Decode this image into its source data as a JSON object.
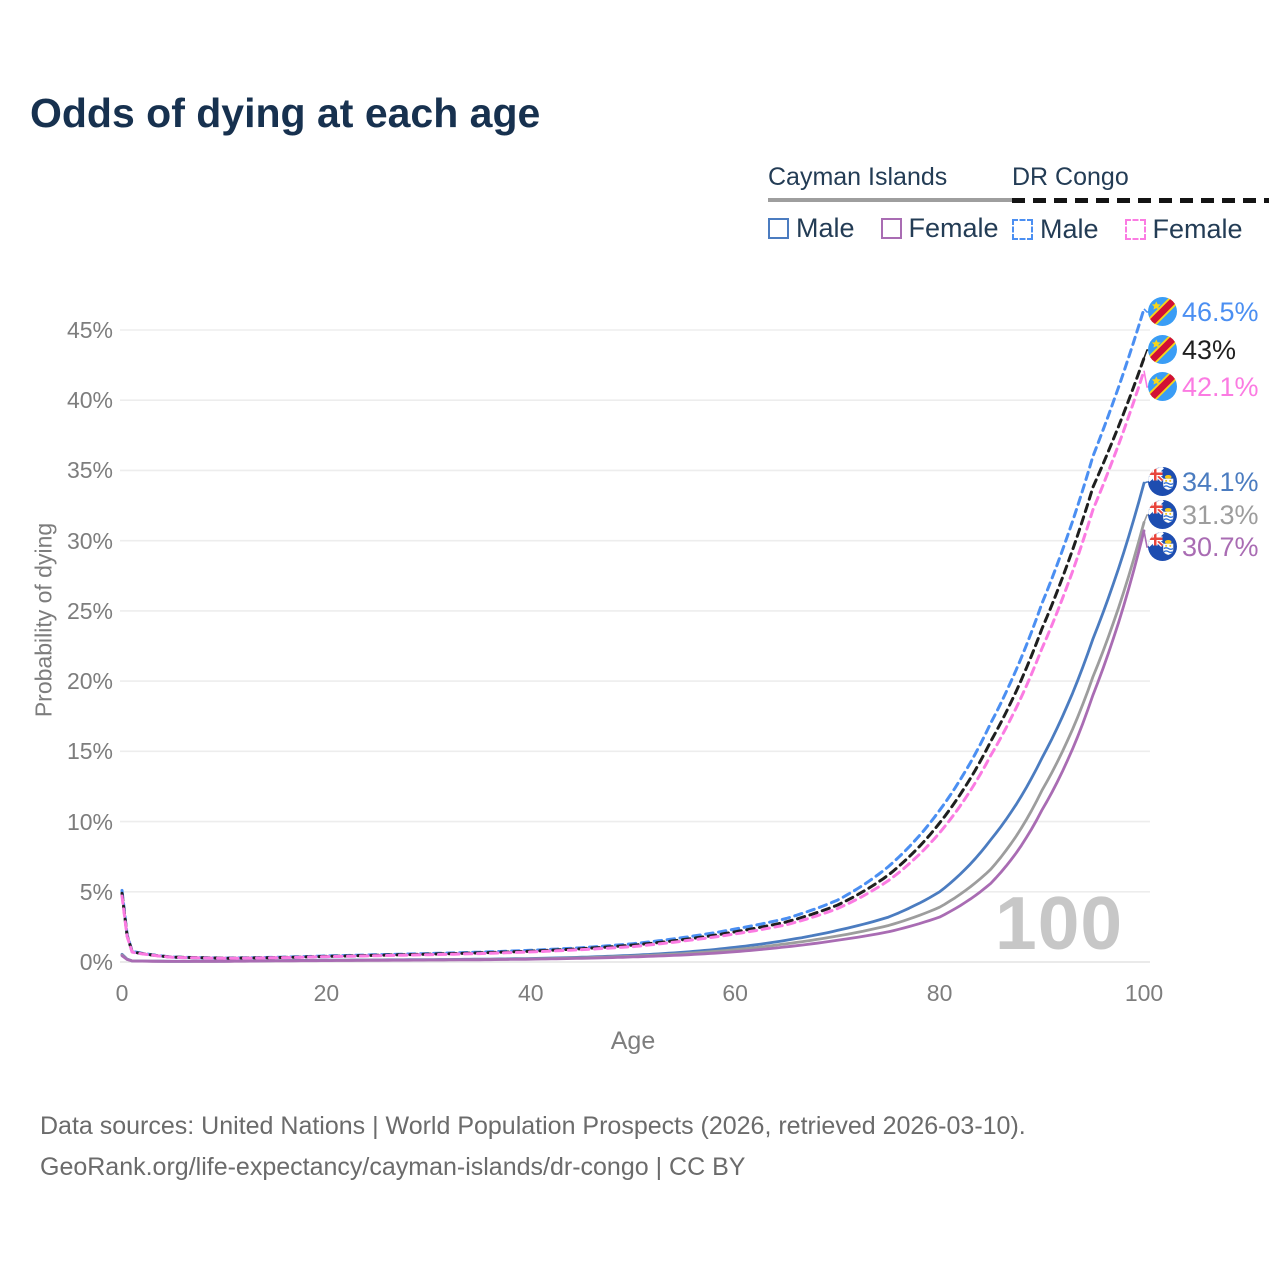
{
  "title": "Odds of dying at each age",
  "legend": {
    "groups": [
      {
        "name": "Cayman Islands",
        "line_style": "solid",
        "underline_color": "#9e9e9e",
        "items": [
          {
            "label": "Male",
            "color": "#4b7cc0"
          },
          {
            "label": "Female",
            "color": "#a96cb3"
          }
        ]
      },
      {
        "name": "DR Congo",
        "line_style": "dashed",
        "underline_color": "#141414",
        "items": [
          {
            "label": "Male",
            "color": "#4b8ff2"
          },
          {
            "label": "Female",
            "color": "#fb7be2"
          }
        ]
      }
    ]
  },
  "watermark": "100",
  "footer": {
    "line1": "Data sources: United Nations | World Population Prospects (2026, retrieved 2026-03-10).",
    "line2": "GeoRank.org/life-expectancy/cayman-islands/dr-congo | CC BY"
  },
  "end_labels": [
    {
      "text": "46.5%",
      "color": "#4b8ff2",
      "flag": "dr-congo-flag",
      "series": "DR Congo — Male"
    },
    {
      "text": "43%",
      "color": "#1f1f1f",
      "flag": "dr-congo-flag",
      "series": "DR Congo — Both sexes"
    },
    {
      "text": "42.1%",
      "color": "#fb7be2",
      "flag": "dr-congo-flag",
      "series": "DR Congo — Female"
    },
    {
      "text": "34.1%",
      "color": "#4b7cc0",
      "flag": "cayman-islands-flag",
      "series": "Cayman Islands — Male"
    },
    {
      "text": "31.3%",
      "color": "#9d9d9d",
      "flag": "cayman-islands-flag",
      "series": "Cayman Islands — Both sexes"
    },
    {
      "text": "30.7%",
      "color": "#a96cb3",
      "flag": "cayman-islands-flag",
      "series": "Cayman Islands — Female"
    }
  ],
  "chart_data": {
    "type": "line",
    "title": "Odds of dying at each age",
    "xlabel": "Age",
    "ylabel": "Probability of dying",
    "xlim": [
      0,
      100
    ],
    "ylim_pct": [
      0,
      47
    ],
    "grid": "horizontal-only",
    "legend_position": "top-right",
    "x_ticks": [
      0,
      20,
      40,
      60,
      80,
      100
    ],
    "x_tick_labels": [
      "0",
      "20",
      "40",
      "60",
      "80",
      "100"
    ],
    "y_ticks_pct": [
      0,
      5,
      10,
      15,
      20,
      25,
      30,
      35,
      40,
      45
    ],
    "y_tick_labels": [
      "0%",
      "5%",
      "10%",
      "15%",
      "20%",
      "25%",
      "30%",
      "35%",
      "40%",
      "45%"
    ],
    "ages": [
      0,
      1,
      5,
      10,
      15,
      20,
      25,
      30,
      35,
      40,
      45,
      50,
      55,
      60,
      65,
      70,
      75,
      80,
      85,
      90,
      95,
      100
    ],
    "series": [
      {
        "name": "Cayman Islands — Male",
        "country": "Cayman Islands",
        "sex": "Male",
        "style": "solid",
        "color": "#4b7cc0",
        "end_value_pct": 34.1,
        "end_label": "34.1%",
        "values_pct": [
          0.55,
          0.08,
          0.05,
          0.06,
          0.1,
          0.13,
          0.15,
          0.17,
          0.2,
          0.25,
          0.34,
          0.48,
          0.7,
          1.05,
          1.55,
          2.25,
          3.2,
          5.0,
          8.7,
          14.5,
          23.0,
          34.1
        ]
      },
      {
        "name": "Cayman Islands — Both sexes",
        "country": "Cayman Islands",
        "sex": "Both sexes",
        "style": "solid",
        "color": "#9d9d9d",
        "end_value_pct": 31.3,
        "end_label": "31.3%",
        "values_pct": [
          0.5,
          0.075,
          0.045,
          0.055,
          0.09,
          0.11,
          0.13,
          0.15,
          0.18,
          0.22,
          0.3,
          0.42,
          0.6,
          0.88,
          1.3,
          1.85,
          2.6,
          3.9,
          6.6,
          12.2,
          20.3,
          31.3
        ]
      },
      {
        "name": "Cayman Islands — Female",
        "country": "Cayman Islands",
        "sex": "Female",
        "style": "solid",
        "color": "#a96cb3",
        "end_value_pct": 30.7,
        "end_label": "30.7%",
        "values_pct": [
          0.45,
          0.07,
          0.04,
          0.05,
          0.08,
          0.1,
          0.12,
          0.14,
          0.16,
          0.2,
          0.26,
          0.36,
          0.5,
          0.73,
          1.08,
          1.55,
          2.15,
          3.2,
          5.6,
          10.8,
          19.0,
          30.7
        ]
      },
      {
        "name": "DR Congo — Male",
        "country": "DR Congo",
        "sex": "Male",
        "style": "dashed",
        "color": "#4b8ff2",
        "end_value_pct": 46.5,
        "end_label": "46.5%",
        "values_pct": [
          5.1,
          0.75,
          0.35,
          0.28,
          0.33,
          0.43,
          0.52,
          0.6,
          0.7,
          0.83,
          1.02,
          1.3,
          1.75,
          2.35,
          3.1,
          4.4,
          6.8,
          10.8,
          17.0,
          25.5,
          36.0,
          46.5
        ]
      },
      {
        "name": "DR Congo — Both sexes",
        "country": "DR Congo",
        "sex": "Both sexes",
        "style": "dashed",
        "color": "#1f1f1f",
        "end_value_pct": 43.0,
        "end_label": "43%",
        "values_pct": [
          4.9,
          0.72,
          0.34,
          0.27,
          0.31,
          0.4,
          0.48,
          0.56,
          0.65,
          0.77,
          0.95,
          1.2,
          1.6,
          2.15,
          2.85,
          4.05,
          6.2,
          9.9,
          15.7,
          23.7,
          33.8,
          43.0
        ]
      },
      {
        "name": "DR Congo — Female",
        "country": "DR Congo",
        "sex": "Female",
        "style": "dashed",
        "color": "#fb7be2",
        "end_value_pct": 42.1,
        "end_label": "42.1%",
        "values_pct": [
          4.7,
          0.7,
          0.33,
          0.26,
          0.3,
          0.38,
          0.45,
          0.52,
          0.6,
          0.72,
          0.88,
          1.1,
          1.5,
          2.0,
          2.65,
          3.8,
          5.8,
          9.2,
          14.7,
          22.3,
          32.2,
          42.1
        ]
      }
    ]
  }
}
